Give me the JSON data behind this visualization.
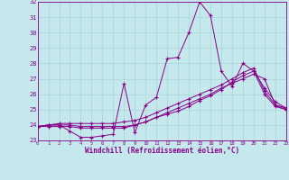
{
  "xlabel": "Windchill (Refroidissement éolien,°C)",
  "xlim": [
    0,
    23
  ],
  "ylim": [
    23,
    32
  ],
  "yticks": [
    23,
    24,
    25,
    26,
    27,
    28,
    29,
    30,
    31,
    32
  ],
  "xticks": [
    0,
    1,
    2,
    3,
    4,
    5,
    6,
    7,
    8,
    9,
    10,
    11,
    12,
    13,
    14,
    15,
    16,
    17,
    18,
    19,
    20,
    21,
    22,
    23
  ],
  "bg_color": "#c5e8ec",
  "line_color": "#880088",
  "grid_color": "#a8d5d8",
  "series": [
    [
      23.9,
      24.0,
      24.0,
      23.6,
      23.2,
      23.2,
      23.3,
      23.4,
      26.7,
      23.5,
      25.3,
      25.8,
      28.3,
      28.4,
      30.0,
      32.0,
      31.1,
      27.5,
      26.5,
      28.0,
      27.5,
      26.0,
      25.2,
      25.0
    ],
    [
      23.9,
      23.9,
      23.9,
      23.9,
      23.8,
      23.8,
      23.8,
      23.8,
      23.8,
      24.0,
      24.2,
      24.5,
      24.8,
      25.1,
      25.4,
      25.7,
      26.0,
      26.4,
      26.7,
      27.0,
      27.3,
      27.0,
      25.3,
      25.0
    ],
    [
      23.9,
      24.0,
      24.0,
      24.0,
      23.9,
      23.9,
      23.9,
      23.9,
      23.9,
      24.0,
      24.2,
      24.5,
      24.7,
      24.9,
      25.2,
      25.6,
      25.9,
      26.3,
      26.8,
      27.2,
      27.5,
      26.4,
      25.5,
      25.1
    ],
    [
      23.9,
      24.0,
      24.1,
      24.1,
      24.1,
      24.1,
      24.1,
      24.1,
      24.2,
      24.3,
      24.5,
      24.8,
      25.1,
      25.4,
      25.7,
      26.0,
      26.3,
      26.6,
      27.0,
      27.4,
      27.7,
      26.2,
      25.3,
      25.1
    ]
  ]
}
